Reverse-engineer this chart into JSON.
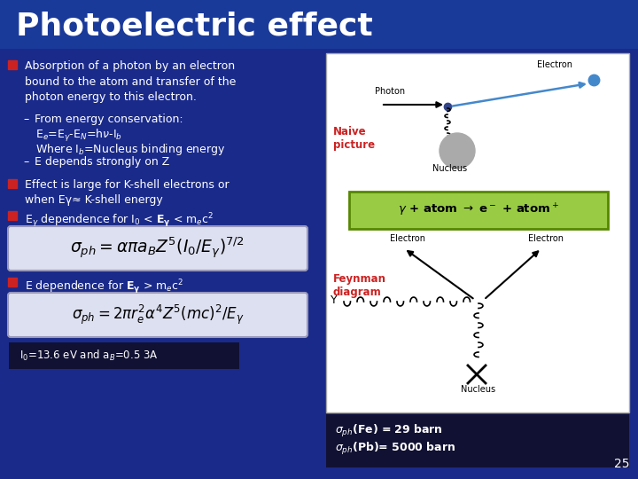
{
  "title": "Photoelectric effect",
  "bg_color": "#1a2a8a",
  "title_color": "#ffffff",
  "text_color": "#ffffff",
  "bullet_color": "#cc2222",
  "slide_num": "25",
  "formula1_latex": "$\\sigma_{ph} = \\alpha\\pi a_B Z^5 \\left(I_0 / E_\\gamma\\right)^{7/2}$",
  "formula2_latex": "$\\sigma_{ph} = 2\\pi r_e^2 \\alpha^4 Z^5 \\left(mc\\right)^2 / E_\\gamma$"
}
